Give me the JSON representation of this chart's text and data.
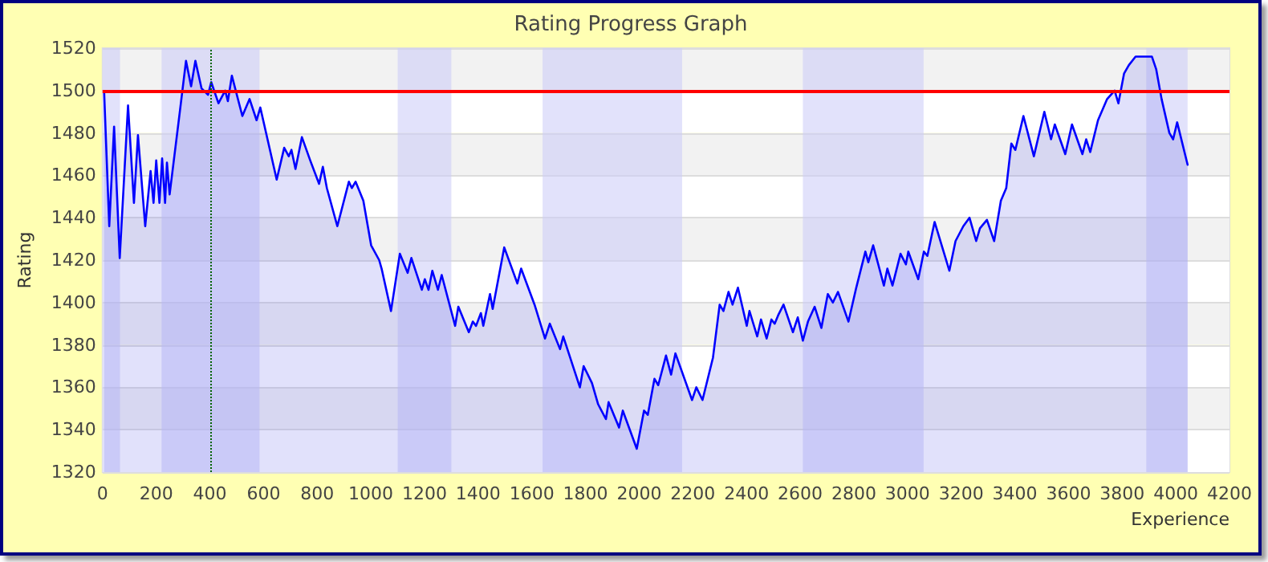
{
  "chart_data": {
    "type": "area",
    "title": "Rating Progress Graph",
    "xlabel": "Experience",
    "ylabel": "Rating",
    "xlim": [
      0,
      4200
    ],
    "xticks": [
      0,
      200,
      400,
      600,
      800,
      1000,
      1200,
      1400,
      1600,
      1800,
      2000,
      2200,
      2400,
      2600,
      2800,
      3000,
      3200,
      3400,
      3600,
      3800,
      4000,
      4200
    ],
    "ylim": [
      1320,
      1520
    ],
    "yticks": [
      1320,
      1340,
      1360,
      1380,
      1400,
      1420,
      1440,
      1460,
      1480,
      1500,
      1520
    ],
    "grid": "y",
    "marker": "none",
    "line_style": "solid",
    "series": [
      {
        "color": "#0000ff",
        "x": [
          6,
          25,
          43,
          64,
          95,
          117,
          132,
          159,
          179,
          190,
          200,
          212,
          222,
          233,
          240,
          250,
          288,
          311,
          330,
          346,
          369,
          393,
          405,
          432,
          457,
          467,
          482,
          521,
          548,
          574,
          588,
          649,
          677,
          694,
          704,
          719,
          743,
          774,
          807,
          821,
          836,
          875,
          918,
          929,
          943,
          972,
          1001,
          1031,
          1040,
          1075,
          1108,
          1137,
          1151,
          1190,
          1201,
          1215,
          1229,
          1250,
          1264,
          1314,
          1326,
          1365,
          1380,
          1392,
          1410,
          1419,
          1444,
          1454,
          1497,
          1546,
          1560,
          1610,
          1649,
          1667,
          1705,
          1717,
          1779,
          1793,
          1824,
          1847,
          1876,
          1886,
          1925,
          1939,
          1991,
          2018,
          2032,
          2057,
          2071,
          2100,
          2119,
          2135,
          2197,
          2213,
          2236,
          2275,
          2300,
          2314,
          2333,
          2348,
          2368,
          2401,
          2411,
          2440,
          2454,
          2475,
          2493,
          2505,
          2518,
          2538,
          2573,
          2591,
          2610,
          2629,
          2654,
          2679,
          2703,
          2722,
          2741,
          2780,
          2809,
          2843,
          2854,
          2872,
          2912,
          2925,
          2944,
          2974,
          2994,
          3003,
          3040,
          3061,
          3074,
          3101,
          3156,
          3179,
          3208,
          3231,
          3256,
          3270,
          3296,
          3323,
          3348,
          3368,
          3387,
          3402,
          3432,
          3471,
          3510,
          3535,
          3549,
          3588,
          3613,
          3652,
          3666,
          3681,
          3710,
          3744,
          3772,
          3786,
          3807,
          3825,
          3850,
          3885,
          3911,
          3927,
          3947,
          3976,
          3990,
          4005,
          4044
        ],
        "values": [
          1499,
          1436,
          1483,
          1421,
          1493,
          1447,
          1479,
          1436,
          1462,
          1447,
          1467,
          1447,
          1468,
          1447,
          1466,
          1451,
          1490,
          1514,
          1502,
          1514,
          1501,
          1498,
          1504,
          1494,
          1500,
          1495,
          1507,
          1488,
          1496,
          1486,
          1492,
          1458,
          1473,
          1469,
          1472,
          1463,
          1478,
          1467,
          1456,
          1464,
          1454,
          1436,
          1457,
          1454,
          1457,
          1448,
          1427,
          1420,
          1416,
          1396,
          1423,
          1414,
          1421,
          1406,
          1411,
          1406,
          1415,
          1406,
          1413,
          1389,
          1398,
          1386,
          1391,
          1389,
          1395,
          1389,
          1404,
          1397,
          1426,
          1409,
          1416,
          1399,
          1383,
          1390,
          1378,
          1384,
          1360,
          1370,
          1362,
          1352,
          1345,
          1353,
          1341,
          1349,
          1331,
          1349,
          1347,
          1364,
          1361,
          1375,
          1366,
          1376,
          1354,
          1360,
          1354,
          1374,
          1399,
          1396,
          1405,
          1399,
          1407,
          1389,
          1396,
          1384,
          1392,
          1383,
          1392,
          1390,
          1394,
          1399,
          1386,
          1393,
          1382,
          1391,
          1398,
          1388,
          1404,
          1400,
          1405,
          1391,
          1407,
          1424,
          1419,
          1427,
          1408,
          1416,
          1408,
          1423,
          1418,
          1424,
          1411,
          1424,
          1422,
          1438,
          1415,
          1429,
          1436,
          1440,
          1429,
          1435,
          1439,
          1429,
          1448,
          1454,
          1475,
          1472,
          1488,
          1469,
          1490,
          1477,
          1484,
          1470,
          1484,
          1470,
          1477,
          1471,
          1486,
          1496,
          1500,
          1494,
          1508,
          1512,
          1516,
          1516,
          1516,
          1510,
          1496,
          1480,
          1477,
          1485,
          1465
        ]
      }
    ],
    "bands": [
      {
        "axis": "x",
        "from": 0,
        "to": 65,
        "color": "#cbcbf7"
      },
      {
        "axis": "x",
        "from": 220,
        "to": 585,
        "color": "#cbcbf7"
      },
      {
        "axis": "x",
        "from": 1100,
        "to": 1300,
        "color": "#cbcbf7"
      },
      {
        "axis": "x",
        "from": 1640,
        "to": 2160,
        "color": "#cbcbf7"
      },
      {
        "axis": "x",
        "from": 2610,
        "to": 3060,
        "color": "#cbcbf7"
      },
      {
        "axis": "x",
        "from": 3890,
        "to": 4044,
        "color": "#cbcbf7"
      }
    ],
    "ref_lines": [
      {
        "axis": "y",
        "value": 1500,
        "color": "#ff0000",
        "line_style": "solid"
      },
      {
        "axis": "x",
        "value": 400,
        "color": "#006400",
        "line_style": "dotted"
      }
    ]
  }
}
